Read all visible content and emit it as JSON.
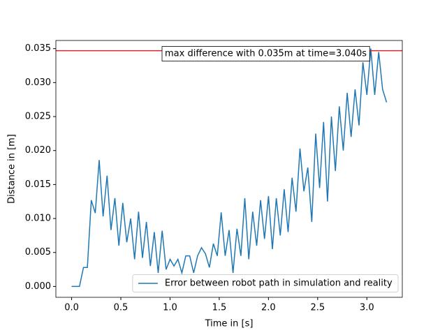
{
  "chart_data": {
    "type": "line",
    "x_label": "Time in [s]",
    "y_label": "Distance in [m]",
    "x": [
      0,
      0.04,
      0.08,
      0.12,
      0.16,
      0.2,
      0.24,
      0.28,
      0.32,
      0.36,
      0.4,
      0.44,
      0.48,
      0.52,
      0.56,
      0.6,
      0.64,
      0.68,
      0.72,
      0.76,
      0.8,
      0.84,
      0.88,
      0.92,
      0.96,
      1.0,
      1.04,
      1.08,
      1.12,
      1.16,
      1.2,
      1.24,
      1.28,
      1.32,
      1.36,
      1.4,
      1.44,
      1.48,
      1.52,
      1.56,
      1.6,
      1.64,
      1.68,
      1.72,
      1.76,
      1.8,
      1.84,
      1.88,
      1.92,
      1.96,
      2.0,
      2.04,
      2.08,
      2.12,
      2.16,
      2.2,
      2.24,
      2.28,
      2.32,
      2.36,
      2.4,
      2.44,
      2.48,
      2.52,
      2.56,
      2.6,
      2.64,
      2.68,
      2.72,
      2.76,
      2.8,
      2.84,
      2.88,
      2.92,
      2.96,
      3.0,
      3.04,
      3.08,
      3.12,
      3.16,
      3.2
    ],
    "series": [
      {
        "name": "Error between robot path in simulation and reality",
        "color": "#1f77b4",
        "values": [
          0,
          0,
          0,
          0.0028,
          0.0028,
          0.0127,
          0.0108,
          0.0186,
          0.0103,
          0.0163,
          0.0083,
          0.013,
          0.006,
          0.0123,
          0.0065,
          0.01,
          0.004,
          0.011,
          0.0042,
          0.0095,
          0.003,
          0.008,
          0.002,
          0.0082,
          0.0025,
          0.004,
          0.003,
          0.004,
          0.002,
          0.0045,
          0.0045,
          0.002,
          0.0045,
          0.0057,
          0.0048,
          0.0028,
          0.0063,
          0.0045,
          0.0109,
          0.0045,
          0.0083,
          0.002,
          0.0085,
          0.0045,
          0.013,
          0.004,
          0.011,
          0.006,
          0.0127,
          0.007,
          0.0133,
          0.0055,
          0.013,
          0.0075,
          0.0143,
          0.008,
          0.016,
          0.011,
          0.0203,
          0.014,
          0.0175,
          0.0095,
          0.0225,
          0.0145,
          0.0242,
          0.0125,
          0.025,
          0.017,
          0.0265,
          0.02,
          0.0285,
          0.022,
          0.029,
          0.0237,
          0.033,
          0.0282,
          0.035,
          0.0282,
          0.0345,
          0.029,
          0.0271
        ]
      }
    ],
    "hline": {
      "value": 0.0347,
      "color": "#d62728"
    },
    "annotation": "max difference with 0.035m at time=3.040s",
    "xlim": [
      -0.16,
      3.36
    ],
    "ylim": [
      -0.0016,
      0.0362
    ],
    "xticks": [
      {
        "value": 0,
        "label": "0.0"
      },
      {
        "value": 0.5,
        "label": "0.5"
      },
      {
        "value": 1,
        "label": "1.0"
      },
      {
        "value": 1.5,
        "label": "1.5"
      },
      {
        "value": 2,
        "label": "2.0"
      },
      {
        "value": 2.5,
        "label": "2.5"
      },
      {
        "value": 3,
        "label": "3.0"
      }
    ],
    "yticks": [
      {
        "value": 0,
        "label": "0.000"
      },
      {
        "value": 0.005,
        "label": "0.005"
      },
      {
        "value": 0.01,
        "label": "0.010"
      },
      {
        "value": 0.015,
        "label": "0.015"
      },
      {
        "value": 0.02,
        "label": "0.020"
      },
      {
        "value": 0.025,
        "label": "0.025"
      },
      {
        "value": 0.03,
        "label": "0.030"
      },
      {
        "value": 0.035,
        "label": "0.035"
      }
    ],
    "legend": "lower right",
    "grid": false
  }
}
